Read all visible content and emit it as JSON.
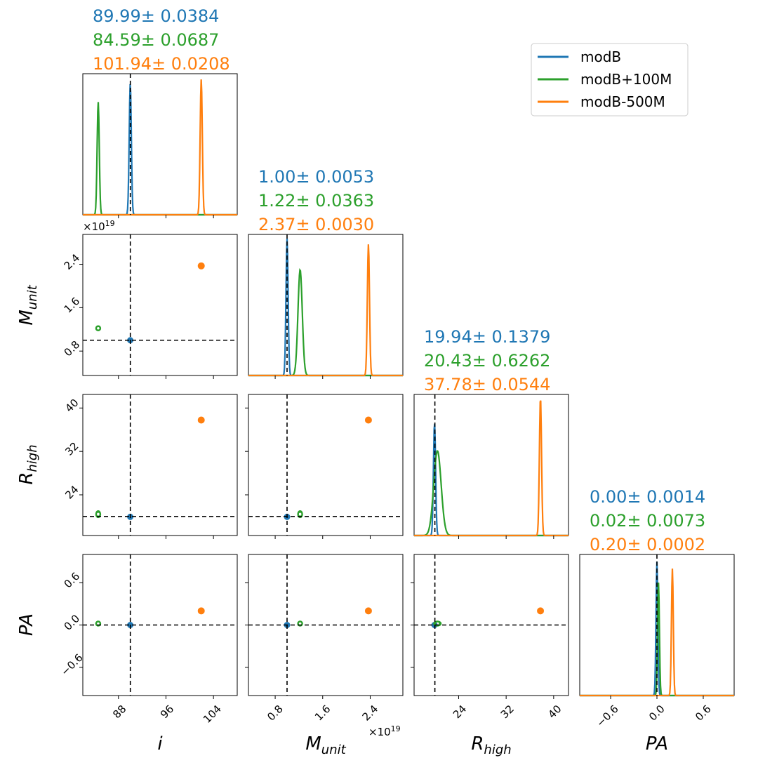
{
  "colors": {
    "modB": "#1f77b4",
    "modB+100M": "#2ca02c",
    "modB-500M": "#ff7f0e",
    "truth": "#000000"
  },
  "chart_data": {
    "type": "corner",
    "series": [
      {
        "name": "modB",
        "color": "#1f77b4",
        "median": {
          "i": 89.99,
          "M_unit": 1.0,
          "R_high": 19.94,
          "PA": 0.0
        }
      },
      {
        "name": "modB+100M",
        "color": "#2ca02c",
        "median": {
          "i": 84.59,
          "M_unit": 1.22,
          "R_high": 20.43,
          "PA": 0.02
        }
      },
      {
        "name": "modB-500M",
        "color": "#ff7f0e",
        "median": {
          "i": 101.94,
          "M_unit": 2.37,
          "R_high": 37.78,
          "PA": 0.2
        }
      }
    ],
    "truth": {
      "i": 90.0,
      "M_unit": 1.0,
      "R_high": 20.0,
      "PA": 0.0
    },
    "params": [
      {
        "key": "i",
        "label": "i",
        "sub": "",
        "range": [
          82,
          108
        ],
        "ticks": [
          "88",
          "96",
          "104"
        ],
        "tick_values": [
          88,
          96,
          104
        ],
        "multiplier": "",
        "stats": [
          "89.99± 0.0384",
          "84.59± 0.0687",
          "101.94± 0.0208"
        ]
      },
      {
        "key": "M_unit",
        "label": "M",
        "sub": "unit",
        "range": [
          0.35,
          2.95
        ],
        "ticks": [
          "0.8",
          "1.6",
          "2.4"
        ],
        "tick_values": [
          0.8,
          1.6,
          2.4
        ],
        "multiplier": "×10",
        "multiplier_exp": "19",
        "stats": [
          "1.00± 0.0053",
          "1.22± 0.0363",
          "2.37± 0.0030"
        ]
      },
      {
        "key": "R_high",
        "label": "R",
        "sub": "high",
        "range": [
          16.5,
          42.5
        ],
        "ticks": [
          "24",
          "32",
          "40"
        ],
        "tick_values": [
          24,
          32,
          40
        ],
        "multiplier": "",
        "stats": [
          "19.94± 0.1379",
          "20.43± 0.6262",
          "37.78± 0.0544"
        ]
      },
      {
        "key": "PA",
        "label": "PA",
        "sub": "",
        "range": [
          -1.0,
          1.0
        ],
        "ticks": [
          "−0.6",
          "0.0",
          "0.6"
        ],
        "tick_values": [
          -0.6,
          0.0,
          0.6
        ],
        "multiplier": "",
        "stats": [
          "0.00± 0.0014",
          "0.02± 0.0073",
          "0.20± 0.0002"
        ]
      }
    ],
    "legend": {
      "position": "top-right",
      "entries": [
        "modB",
        "modB+100M",
        "modB-500M"
      ]
    }
  }
}
